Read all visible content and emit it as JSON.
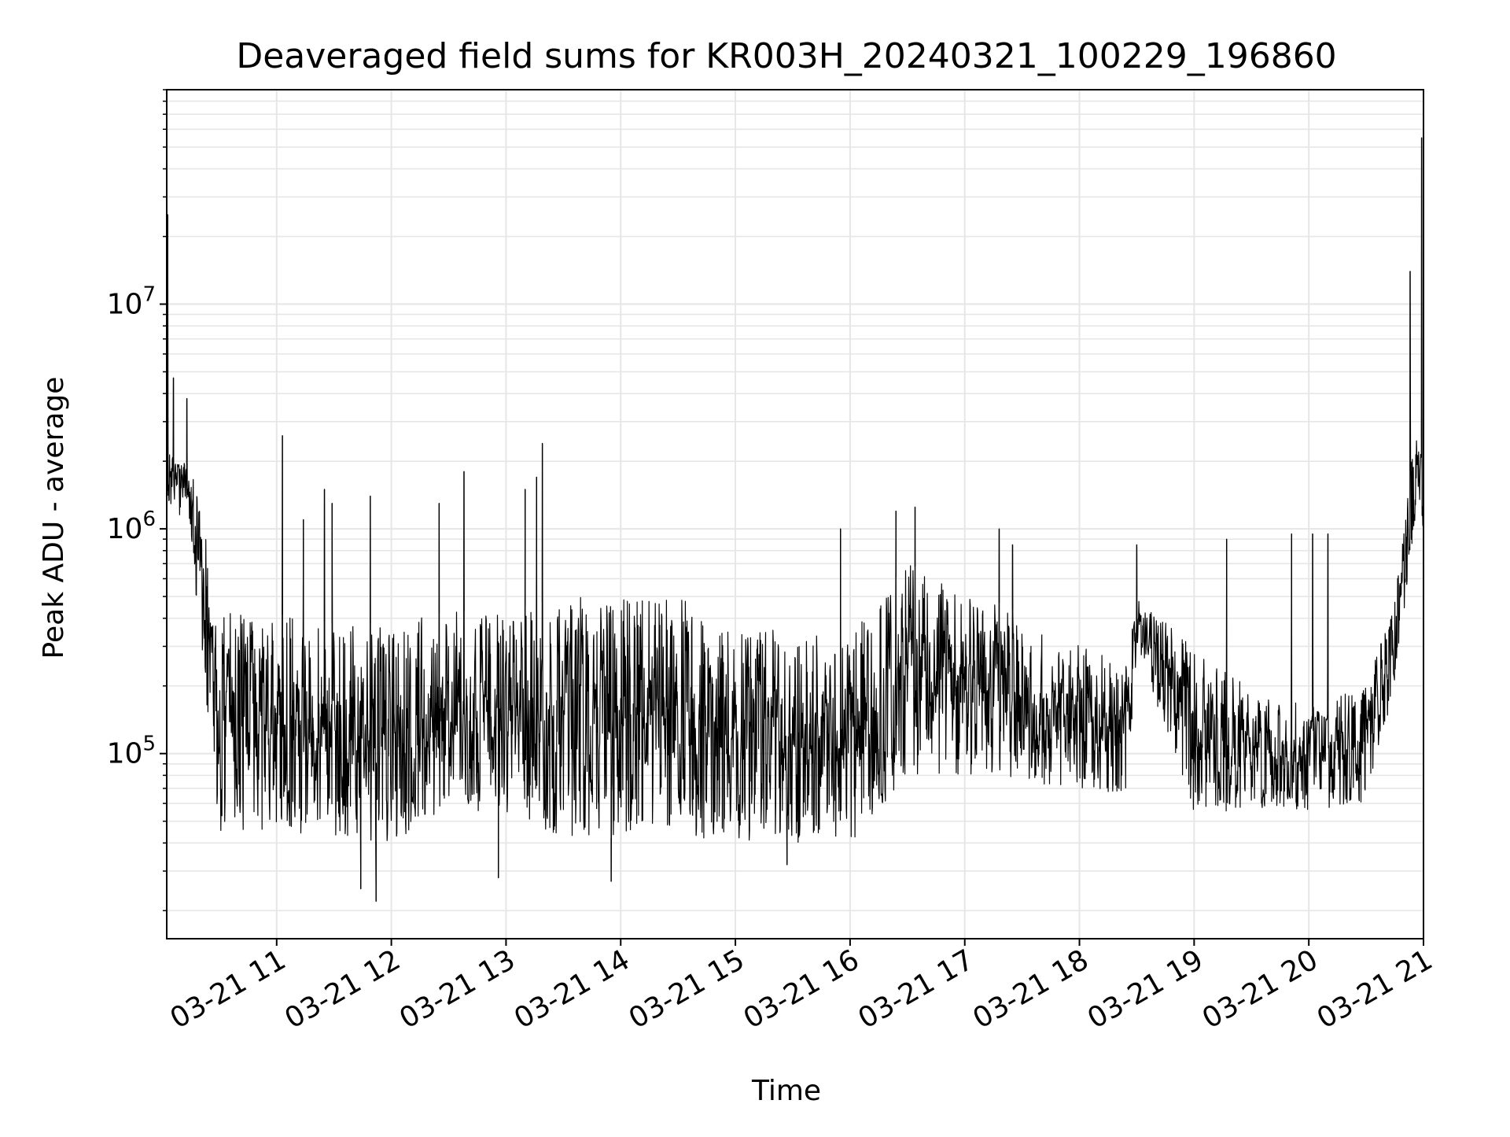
{
  "chart_data": {
    "type": "line",
    "title": "Deaveraged field sums for KR003H_20240321_100229_196860",
    "xlabel": "Time",
    "ylabel": "Peak ADU - average",
    "yscale": "log",
    "ylim": [
      15000,
      90000000
    ],
    "xlim": [
      "2024-03-21 10:02:29",
      "2024-03-21 21:00:00"
    ],
    "grid": true,
    "x_ticks": [
      "03-21 11",
      "03-21 12",
      "03-21 13",
      "03-21 14",
      "03-21 15",
      "03-21 16",
      "03-21 17",
      "03-21 18",
      "03-21 19",
      "03-21 20",
      "03-21 21"
    ],
    "y_ticks": [
      {
        "exp": "5",
        "value": 100000
      },
      {
        "exp": "6",
        "value": 1000000
      },
      {
        "exp": "7",
        "value": 10000000
      }
    ],
    "line_color": "#000000",
    "grid_color": "#e6e6e6",
    "series": [
      {
        "envelope": {
          "x": [
            "2024-03-21 10:02:29",
            "2024-03-21 10:15",
            "2024-03-21 10:20",
            "2024-03-21 10:25",
            "2024-03-21 10:30",
            "2024-03-21 11:00",
            "2024-03-21 11:30",
            "2024-03-21 12:00",
            "2024-03-21 12:30",
            "2024-03-21 13:00",
            "2024-03-21 13:30",
            "2024-03-21 14:00",
            "2024-03-21 14:30",
            "2024-03-21 15:00",
            "2024-03-21 15:30",
            "2024-03-21 16:00",
            "2024-03-21 16:30",
            "2024-03-21 17:00",
            "2024-03-21 17:30",
            "2024-03-21 18:00",
            "2024-03-21 18:25",
            "2024-03-21 18:30",
            "2024-03-21 19:00",
            "2024-03-21 19:30",
            "2024-03-21 20:00",
            "2024-03-21 20:30",
            "2024-03-21 20:45",
            "2024-03-21 20:55",
            "2024-03-21 21:00"
          ],
          "low": [
            1300000,
            1000000,
            300000,
            120000,
            45000,
            45000,
            42000,
            40000,
            55000,
            55000,
            42000,
            42000,
            42000,
            40000,
            40000,
            40000,
            80000,
            80000,
            75000,
            70000,
            65000,
            300000,
            55000,
            55000,
            55000,
            60000,
            200000,
            1000000,
            1000000
          ],
          "high": [
            2200000,
            1900000,
            1300000,
            800000,
            430000,
            420000,
            380000,
            380000,
            430000,
            430000,
            500000,
            500000,
            500000,
            400000,
            350000,
            350000,
            700000,
            550000,
            420000,
            300000,
            250000,
            500000,
            300000,
            200000,
            160000,
            200000,
            500000,
            2500000,
            2500000
          ]
        },
        "spikes": [
          {
            "x": "2024-03-21 10:03",
            "y": 25000000
          },
          {
            "x": "2024-03-21 10:06",
            "y": 4700000
          },
          {
            "x": "2024-03-21 10:13",
            "y": 3800000
          },
          {
            "x": "2024-03-21 11:03",
            "y": 2600000
          },
          {
            "x": "2024-03-21 11:14",
            "y": 1100000
          },
          {
            "x": "2024-03-21 11:25",
            "y": 1500000
          },
          {
            "x": "2024-03-21 11:29",
            "y": 1300000
          },
          {
            "x": "2024-03-21 11:49",
            "y": 1400000
          },
          {
            "x": "2024-03-21 12:25",
            "y": 1300000
          },
          {
            "x": "2024-03-21 12:38",
            "y": 1800000
          },
          {
            "x": "2024-03-21 13:10",
            "y": 1500000
          },
          {
            "x": "2024-03-21 13:16",
            "y": 1700000
          },
          {
            "x": "2024-03-21 13:19",
            "y": 2400000
          },
          {
            "x": "2024-03-21 15:55",
            "y": 1000000
          },
          {
            "x": "2024-03-21 16:24",
            "y": 1200000
          },
          {
            "x": "2024-03-21 16:34",
            "y": 1250000
          },
          {
            "x": "2024-03-21 17:18",
            "y": 1000000
          },
          {
            "x": "2024-03-21 17:25",
            "y": 850000
          },
          {
            "x": "2024-03-21 18:30",
            "y": 850000
          },
          {
            "x": "2024-03-21 19:17",
            "y": 900000
          },
          {
            "x": "2024-03-21 19:51",
            "y": 950000
          },
          {
            "x": "2024-03-21 20:02",
            "y": 950000
          },
          {
            "x": "2024-03-21 20:10",
            "y": 950000
          },
          {
            "x": "2024-03-21 20:53",
            "y": 14000000
          },
          {
            "x": "2024-03-21 20:59",
            "y": 55000000
          }
        ],
        "dips": [
          {
            "x": "2024-03-21 11:44",
            "y": 25000
          },
          {
            "x": "2024-03-21 11:52",
            "y": 22000
          },
          {
            "x": "2024-03-21 12:56",
            "y": 28000
          },
          {
            "x": "2024-03-21 13:55",
            "y": 27000
          },
          {
            "x": "2024-03-21 15:27",
            "y": 32000
          }
        ]
      }
    ]
  }
}
